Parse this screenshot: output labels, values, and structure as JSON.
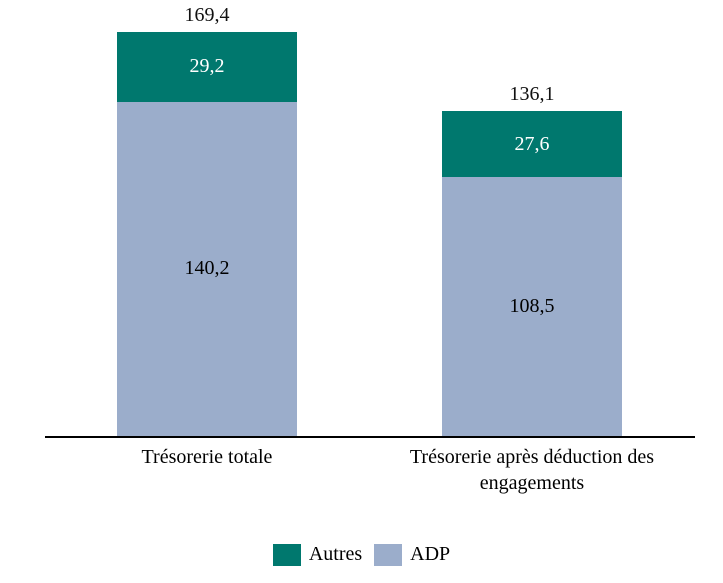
{
  "chart_data": {
    "type": "bar",
    "variant": "stacked-vertical",
    "title": "",
    "xlabel": "",
    "ylabel": "",
    "categories": [
      "Trésorerie totale",
      "Trésorerie après déduction des engagements"
    ],
    "series": [
      {
        "name": "ADP",
        "color": "#9badcb",
        "values": [
          140.2,
          108.5
        ],
        "labels": [
          "140,2",
          "108,5"
        ],
        "label_color": "#000000"
      },
      {
        "name": "Autres",
        "color": "#00786e",
        "values": [
          29.2,
          27.6
        ],
        "labels": [
          "29,2",
          "27,6"
        ],
        "label_color": "#ffffff"
      }
    ],
    "totals": {
      "values": [
        169.4,
        136.1
      ],
      "labels": [
        "169,4",
        "136,1"
      ]
    },
    "stack_order_top_to_bottom": [
      "Autres",
      "ADP"
    ],
    "legend": {
      "position": "bottom",
      "order": [
        "Autres",
        "ADP"
      ]
    },
    "axis": {
      "baseline_color": "#000000",
      "gridlines": false,
      "y_axis_visible": false,
      "ylim": [
        0,
        180
      ]
    }
  }
}
